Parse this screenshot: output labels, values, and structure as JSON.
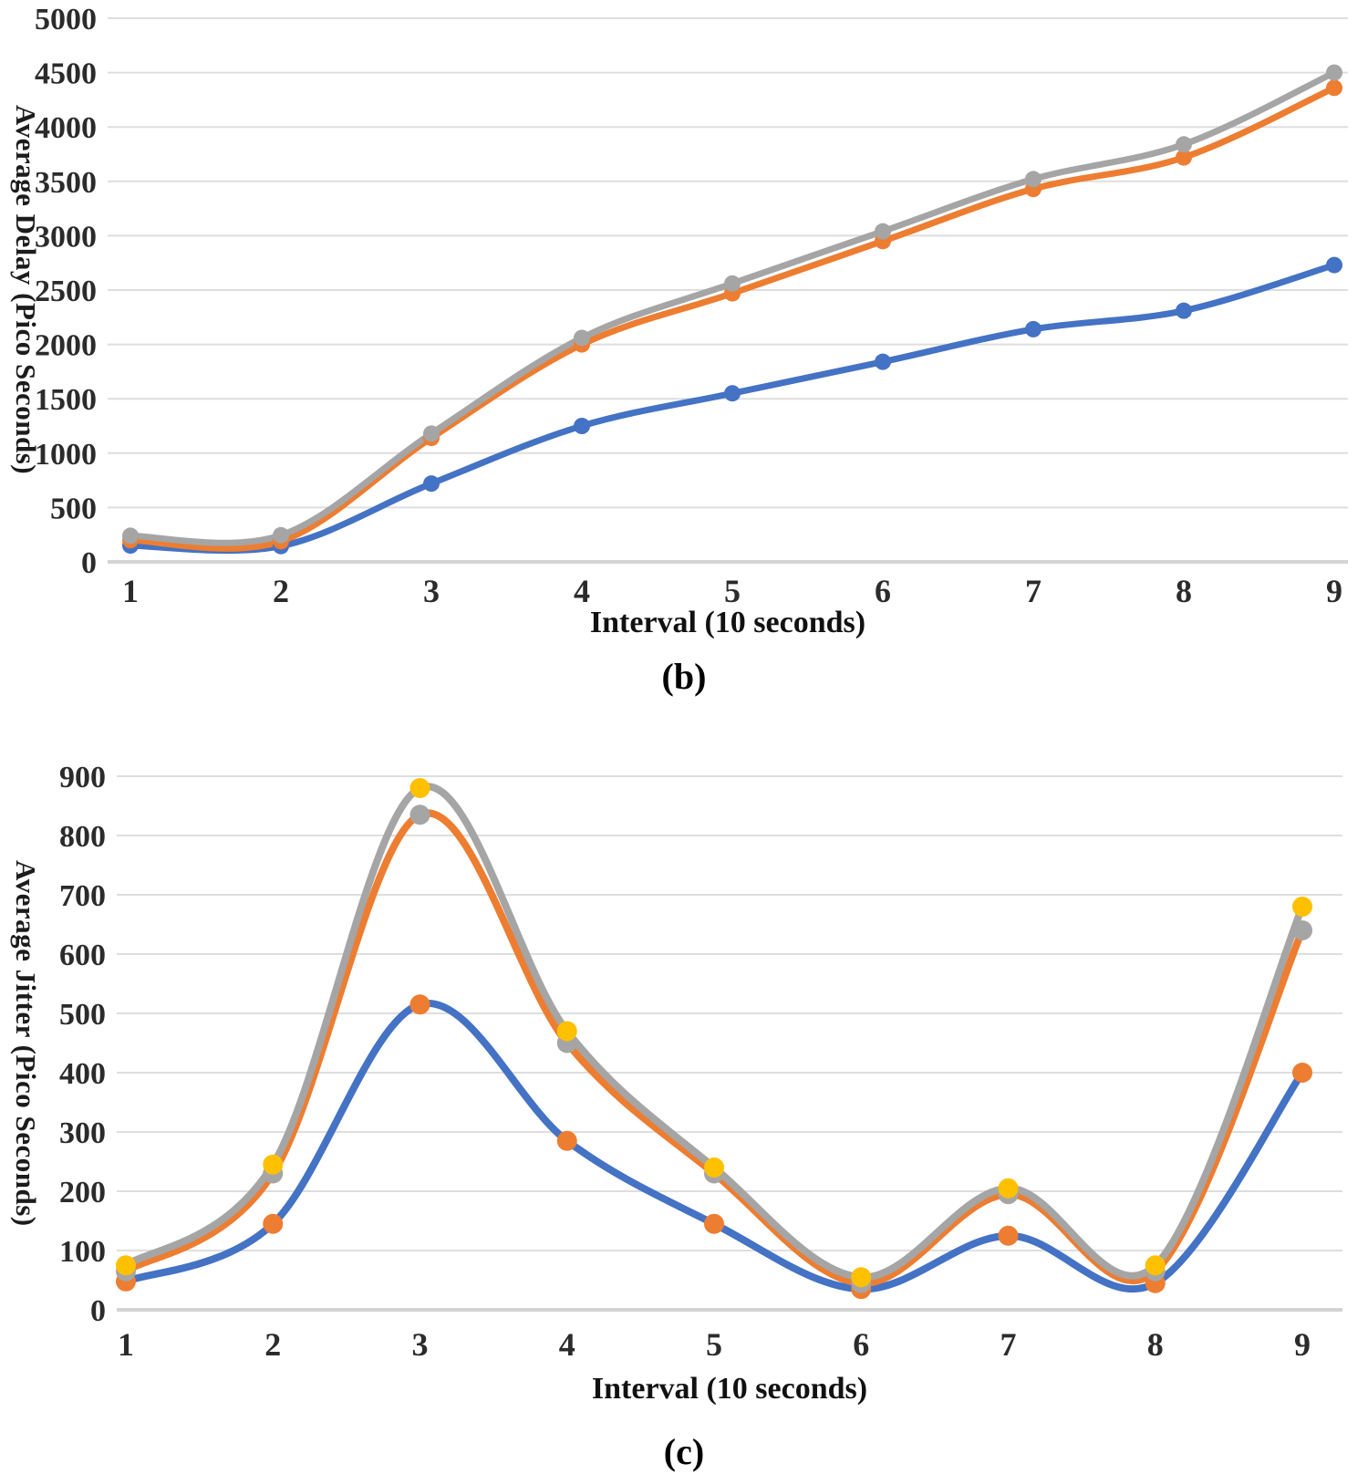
{
  "figure": {
    "background": "#ffffff",
    "tick_text_color": "#2b2b2b",
    "gridline_color": "#dedede",
    "axis_line_color": "#d4d4d4"
  },
  "palette": {
    "blue": "#4472C4",
    "orange": "#ED7D31",
    "gray": "#A5A5A5",
    "yellow": "#FFC000"
  },
  "chart_data": [
    {
      "id": "chart-b",
      "type": "line",
      "caption": "(b)",
      "xlabel": "Interval (10 seconds)",
      "ylabel": "Average Delay (Pico Seconds)",
      "x": [
        1,
        2,
        3,
        4,
        5,
        6,
        7,
        8,
        9
      ],
      "xtick_labels": [
        "1",
        "2",
        "3",
        "4",
        "5",
        "6",
        "7",
        "8",
        "9"
      ],
      "ylim": [
        0,
        5000
      ],
      "yticks": [
        0,
        500,
        1000,
        1500,
        2000,
        2500,
        3000,
        3500,
        4000,
        4500,
        5000
      ],
      "grid": true,
      "legend": "none",
      "line_style": "smooth",
      "series": [
        {
          "name": "blue-series",
          "line_color": "blue",
          "marker_color": "blue",
          "values": [
            150,
            145,
            720,
            1250,
            1550,
            1840,
            2140,
            2310,
            2730
          ]
        },
        {
          "name": "orange-series",
          "line_color": "orange",
          "marker_color": "orange",
          "values": [
            200,
            190,
            1140,
            2000,
            2470,
            2950,
            3430,
            3720,
            4360
          ]
        },
        {
          "name": "gray-series",
          "line_color": "gray",
          "marker_color": "gray",
          "values": [
            240,
            245,
            1180,
            2060,
            2560,
            3040,
            3520,
            3840,
            4500
          ]
        }
      ]
    },
    {
      "id": "chart-c",
      "type": "line",
      "caption": "(c)",
      "xlabel": "Interval (10 seconds)",
      "ylabel": "Average Jitter (Pico Seconds)",
      "x": [
        1,
        2,
        3,
        4,
        5,
        6,
        7,
        8,
        9
      ],
      "xtick_labels": [
        "1",
        "2",
        "3",
        "4",
        "5",
        "6",
        "7",
        "8",
        "9"
      ],
      "ylim": [
        0,
        900
      ],
      "yticks": [
        0,
        100,
        200,
        300,
        400,
        500,
        600,
        700,
        800,
        900
      ],
      "grid": true,
      "legend": "none",
      "line_style": "smooth",
      "series": [
        {
          "name": "blue-series",
          "line_color": "blue",
          "marker_color": "orange",
          "values": [
            48,
            145,
            515,
            285,
            145,
            35,
            125,
            45,
            400
          ]
        },
        {
          "name": "orange-series",
          "line_color": "orange",
          "marker_color": "gray",
          "values": [
            65,
            230,
            835,
            450,
            230,
            45,
            195,
            65,
            640
          ]
        },
        {
          "name": "gray-series",
          "line_color": "gray",
          "marker_color": "yellow",
          "values": [
            75,
            245,
            880,
            470,
            240,
            55,
            205,
            75,
            680
          ]
        }
      ]
    }
  ]
}
